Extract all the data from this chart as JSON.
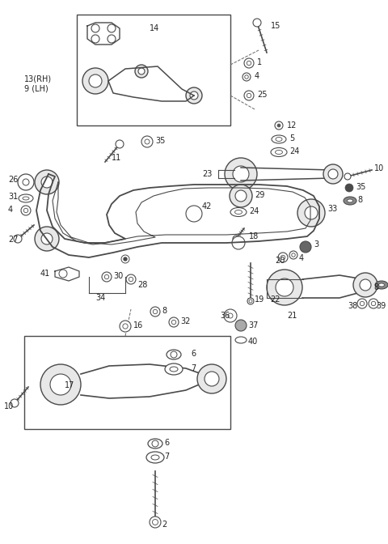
{
  "bg_color": "#ffffff",
  "lc": "#4a4a4a",
  "lw": 1.0,
  "fig_w": 4.8,
  "fig_h": 6.72,
  "dpi": 100
}
